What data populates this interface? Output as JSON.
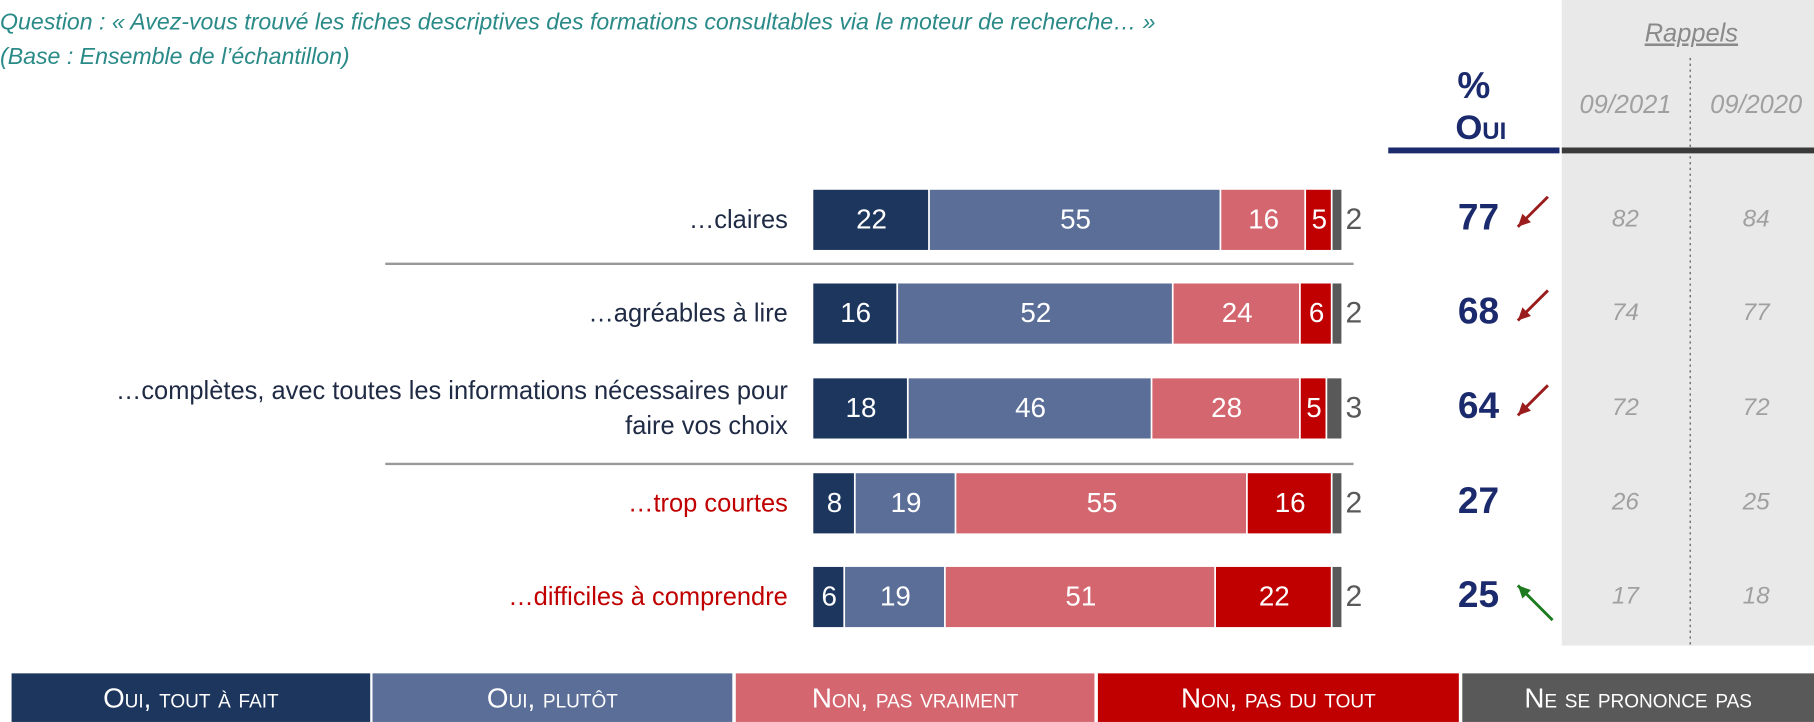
{
  "chart_data": {
    "type": "stacked_barh",
    "question": "Question : « Avez-vous trouvé les fiches descriptives des formations consultables via le moteur de recherche… »",
    "base": "(Base : Ensemble de l’échantillon)",
    "categories": [
      "…claires",
      "…agréables à lire",
      "…complètes, avec toutes les informations nécessaires pour faire vos choix",
      "…trop courtes",
      "…difficiles à comprendre"
    ],
    "category_colors": [
      "#1f2a44",
      "#1f2a44",
      "#1f2a44",
      "#c00000",
      "#c00000"
    ],
    "xlim": [
      0,
      100
    ],
    "series": [
      {
        "name": "Oui, tout à fait",
        "color": "#1c365e",
        "values": [
          22,
          16,
          18,
          8,
          6
        ]
      },
      {
        "name": "Oui, plutôt",
        "color": "#5a6e98",
        "values": [
          55,
          52,
          46,
          19,
          19
        ]
      },
      {
        "name": "Non, pas vraiment",
        "color": "#d4666f",
        "values": [
          16,
          24,
          28,
          55,
          51
        ]
      },
      {
        "name": "Non, pas du tout",
        "color": "#c00000",
        "values": [
          5,
          6,
          5,
          16,
          22
        ]
      },
      {
        "name": "Ne se prononce pas",
        "color": "#595959",
        "values": [
          2,
          2,
          3,
          2,
          2
        ]
      }
    ],
    "oui_header_pct": "%",
    "oui_header": "Oui",
    "oui_values": [
      77,
      68,
      64,
      27,
      25
    ],
    "trend": [
      "down",
      "down",
      "down",
      null,
      "up"
    ],
    "trend_colors": {
      "down": "#9b1c1c",
      "up": "#1e7a1e"
    },
    "rappels_title": "Rappels",
    "rappels": [
      {
        "name": "09/2021",
        "values": [
          82,
          74,
          72,
          26,
          17
        ]
      },
      {
        "name": "09/2020",
        "values": [
          84,
          77,
          72,
          25,
          18
        ]
      }
    ]
  }
}
